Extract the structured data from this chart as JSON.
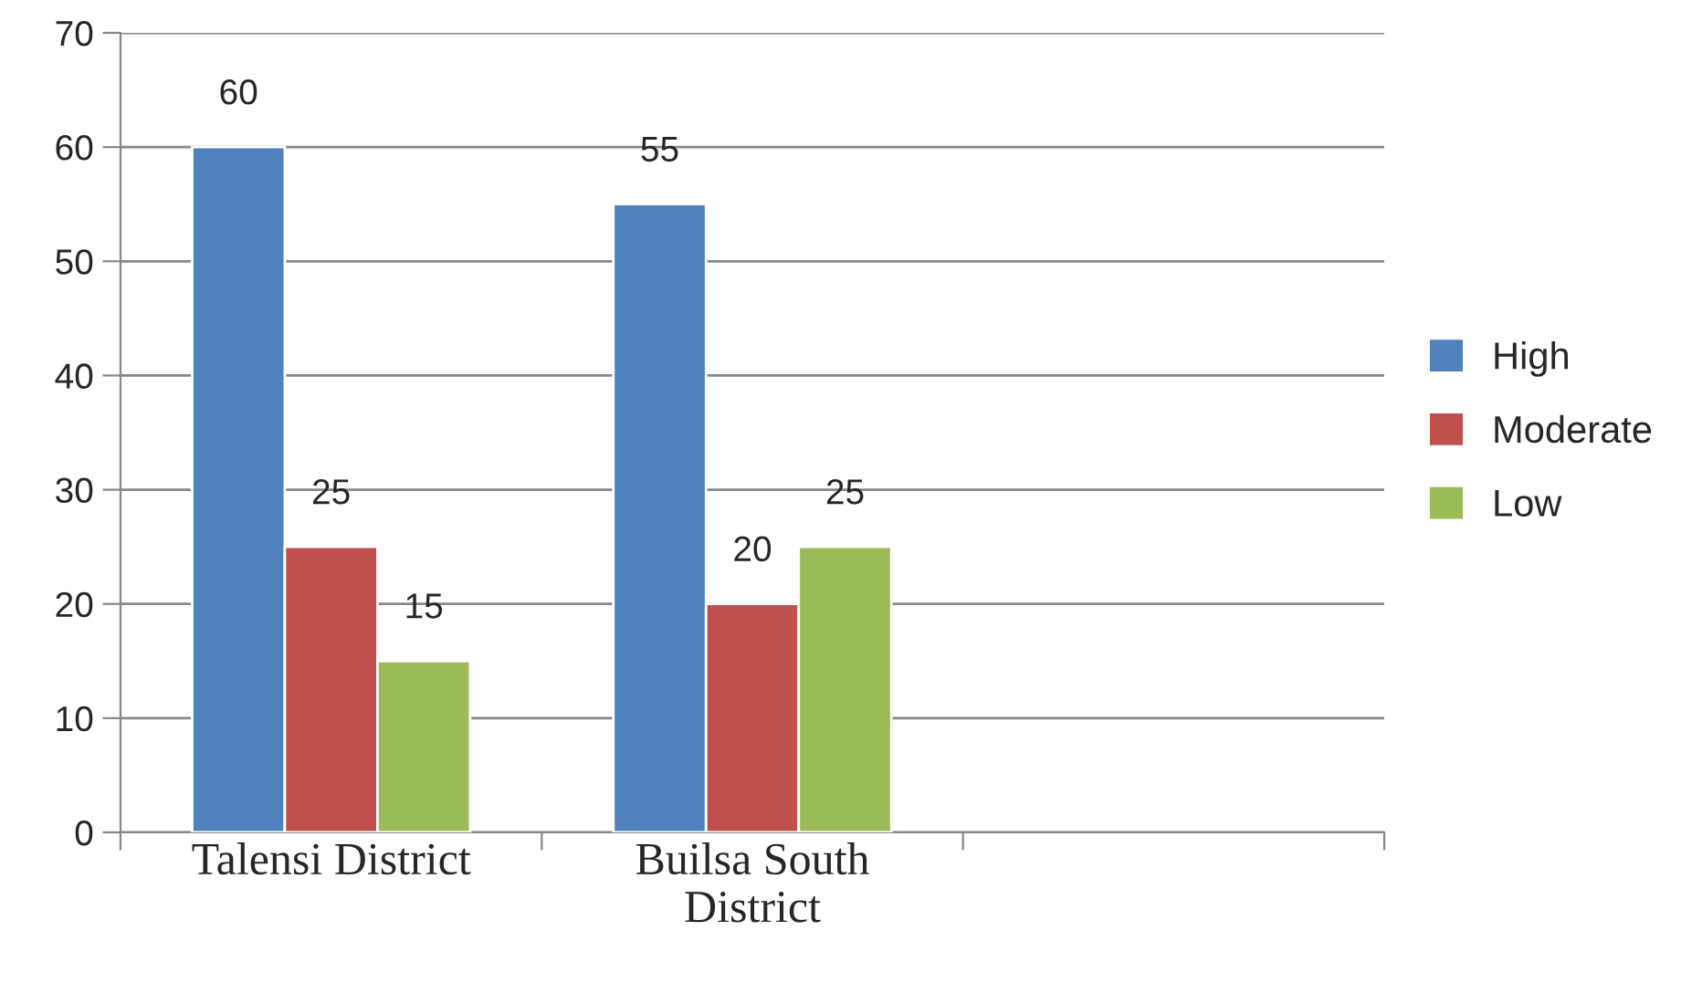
{
  "chart_data": {
    "type": "bar",
    "categories": [
      "Talensi District",
      "Builsa South\nDistrict",
      null
    ],
    "series": [
      {
        "name": "High",
        "color": "#4f81bd",
        "values": [
          60,
          55,
          null
        ]
      },
      {
        "name": "Moderate",
        "color": "#c0504d",
        "values": [
          25,
          20,
          null
        ]
      },
      {
        "name": "Low",
        "color": "#9bbb59",
        "values": [
          15,
          25,
          null
        ]
      }
    ],
    "ylim": [
      0,
      70
    ],
    "yticks": [
      0,
      10,
      20,
      30,
      40,
      50,
      60,
      70
    ],
    "grid": "y",
    "legend": "right",
    "data_labels": true
  }
}
